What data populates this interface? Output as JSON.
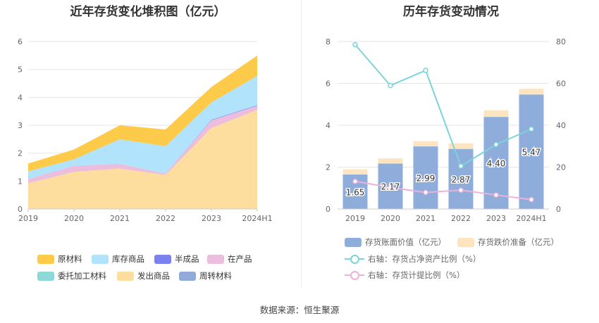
{
  "left_chart": {
    "title": "近年存货变化堆积图（亿元）",
    "legend": [
      {
        "label": "原材料",
        "color": "#FDCB49"
      },
      {
        "label": "库存商品",
        "color": "#B1E3FC"
      },
      {
        "label": "半成品",
        "color": "#7B82F0"
      },
      {
        "label": "在产品",
        "color": "#EBBEDD"
      },
      {
        "label": "委托加工材料",
        "color": "#8ED8D8"
      },
      {
        "label": "发出商品",
        "color": "#FEDE9E"
      },
      {
        "label": "周转材料",
        "color": "#90ABDA"
      }
    ]
  },
  "right_chart": {
    "title": "历年存货变动情况",
    "legend": [
      {
        "label": "存货账面价值（亿元）",
        "color": "#8FADDB",
        "kind": "bar"
      },
      {
        "label": "存货跌价准备（亿元）",
        "color": "#FEE5C0",
        "kind": "bar"
      },
      {
        "label": "右轴：存货占净资产比例（%）",
        "color": "#7DD3DB",
        "kind": "line"
      },
      {
        "label": "右轴：存货计提比例（%）",
        "color": "#EBB2DA",
        "kind": "line"
      }
    ]
  },
  "chart_data": [
    {
      "type": "area",
      "stacked": true,
      "title": "近年存货变化堆积图（亿元）",
      "categories": [
        "2019",
        "2020",
        "2021",
        "2022",
        "2023",
        "2024H1"
      ],
      "ylim": [
        0,
        6
      ],
      "yticks": [
        0,
        1,
        2,
        3,
        4,
        5,
        6
      ],
      "grid": true,
      "legend_position": "bottom",
      "series": [
        {
          "name": "发出商品",
          "color": "#FEDE9E",
          "values": [
            0.92,
            1.33,
            1.45,
            1.22,
            2.9,
            3.55
          ]
        },
        {
          "name": "周转材料",
          "color": "#90ABDA",
          "values": [
            0.0,
            0.0,
            0.0,
            0.0,
            0.0,
            0.0
          ]
        },
        {
          "name": "委托加工材料",
          "color": "#8ED8D8",
          "values": [
            0.0,
            0.0,
            0.0,
            0.0,
            0.0,
            0.0
          ]
        },
        {
          "name": "在产品",
          "color": "#EBBEDD",
          "values": [
            0.15,
            0.22,
            0.17,
            0.05,
            0.28,
            0.15
          ]
        },
        {
          "name": "半成品",
          "color": "#7B82F0",
          "values": [
            0.0,
            0.0,
            0.0,
            0.0,
            0.02,
            0.02
          ]
        },
        {
          "name": "库存商品",
          "color": "#B1E3FC",
          "values": [
            0.28,
            0.23,
            0.88,
            0.98,
            0.62,
            1.05
          ]
        },
        {
          "name": "原材料",
          "color": "#FDCB49",
          "values": [
            0.28,
            0.35,
            0.5,
            0.6,
            0.55,
            0.73
          ]
        }
      ]
    },
    {
      "type": "bar",
      "stacked": true,
      "title": "历年存货变动情况",
      "categories": [
        "2019",
        "2020",
        "2021",
        "2022",
        "2023",
        "2024H1"
      ],
      "ylim": [
        0,
        8
      ],
      "yticks": [
        0,
        2,
        4,
        6,
        8
      ],
      "y2lim": [
        0,
        80
      ],
      "y2ticks": [
        0,
        20,
        40,
        60,
        80
      ],
      "grid": true,
      "legend_position": "bottom",
      "series": [
        {
          "name": "存货账面价值（亿元）",
          "color": "#8FADDB",
          "axis": "left",
          "kind": "bar",
          "values": [
            1.65,
            2.17,
            2.99,
            2.87,
            4.4,
            5.47
          ],
          "labels": [
            "1.65",
            "2.17",
            "2.99",
            "2.87",
            "4.40",
            "5.47"
          ]
        },
        {
          "name": "存货跌价准备（亿元）",
          "color": "#FEE5C0",
          "axis": "left",
          "kind": "bar",
          "values": [
            0.25,
            0.25,
            0.25,
            0.27,
            0.32,
            0.27
          ]
        },
        {
          "name": "右轴：存货占净资产比例（%）",
          "color": "#7DD3DB",
          "axis": "right",
          "kind": "line",
          "values": [
            78.5,
            59.0,
            66.2,
            20.5,
            30.8,
            38.2
          ]
        },
        {
          "name": "右轴：存货计提比例（%）",
          "color": "#EBB2DA",
          "axis": "right",
          "kind": "line",
          "values": [
            13.2,
            10.3,
            7.9,
            9.0,
            6.7,
            4.5
          ]
        }
      ]
    }
  ],
  "source": "数据来源：恒生聚源"
}
